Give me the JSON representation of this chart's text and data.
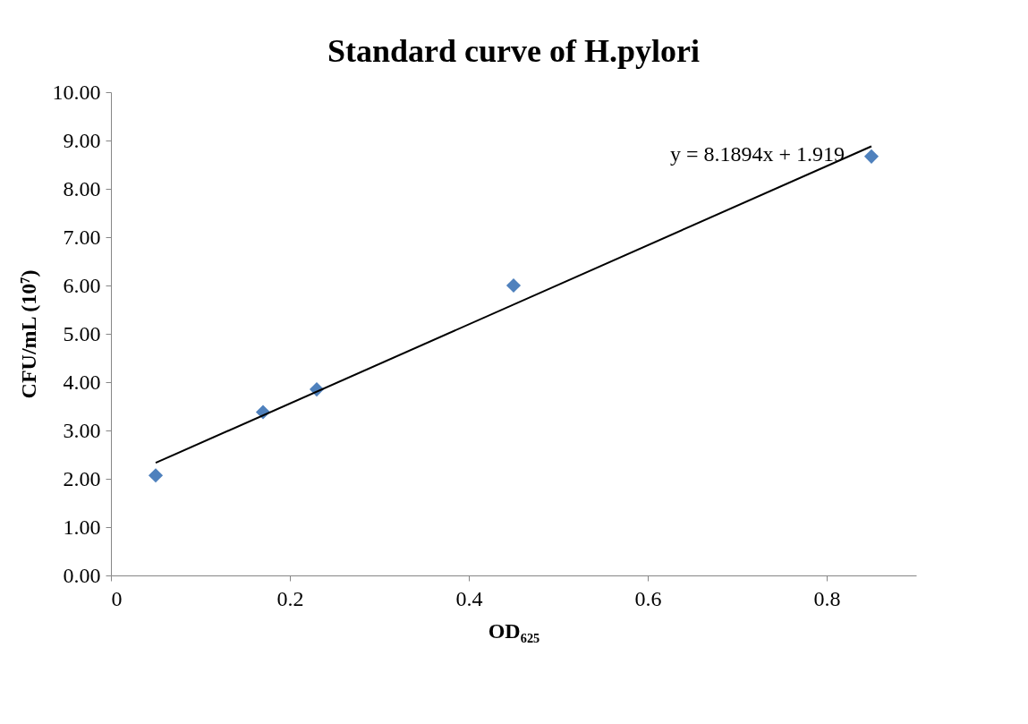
{
  "chart_data": {
    "type": "scatter",
    "title": "Standard curve of H.pylori",
    "xlabel": "OD₆₂₅",
    "ylabel": "CFU/mL (10⁷)",
    "x": [
      0.05,
      0.17,
      0.23,
      0.45,
      0.85
    ],
    "series": [
      {
        "color": "#4f81bd",
        "values": [
          2.07,
          3.38,
          3.85,
          6.0,
          8.67
        ],
        "marker": "diamond"
      },
      {
        "type": "line",
        "color": "#000000",
        "x": [
          0.05,
          0.85
        ],
        "values": [
          2.33,
          8.88
        ],
        "marker": "none"
      }
    ],
    "xlim": [
      0,
      0.9
    ],
    "xticks": [
      0,
      0.2,
      0.4,
      0.6,
      0.8
    ],
    "ylim": [
      0,
      10
    ],
    "yticks": [
      {
        "value": 0,
        "label": "0.00"
      },
      {
        "value": 1,
        "label": "1.00"
      },
      {
        "value": 2,
        "label": "2.00"
      },
      {
        "value": 3,
        "label": "3.00"
      },
      {
        "value": 4,
        "label": "4.00"
      },
      {
        "value": 5,
        "label": "5.00"
      },
      {
        "value": 6,
        "label": "6.00"
      },
      {
        "value": 7,
        "label": "7.00"
      },
      {
        "value": 8,
        "label": "8.00"
      },
      {
        "value": 9,
        "label": "9.00"
      },
      {
        "value": 10,
        "label": "10.00"
      }
    ],
    "annotations": [
      "y = 8.1894x + 1.919"
    ],
    "grid": false
  }
}
